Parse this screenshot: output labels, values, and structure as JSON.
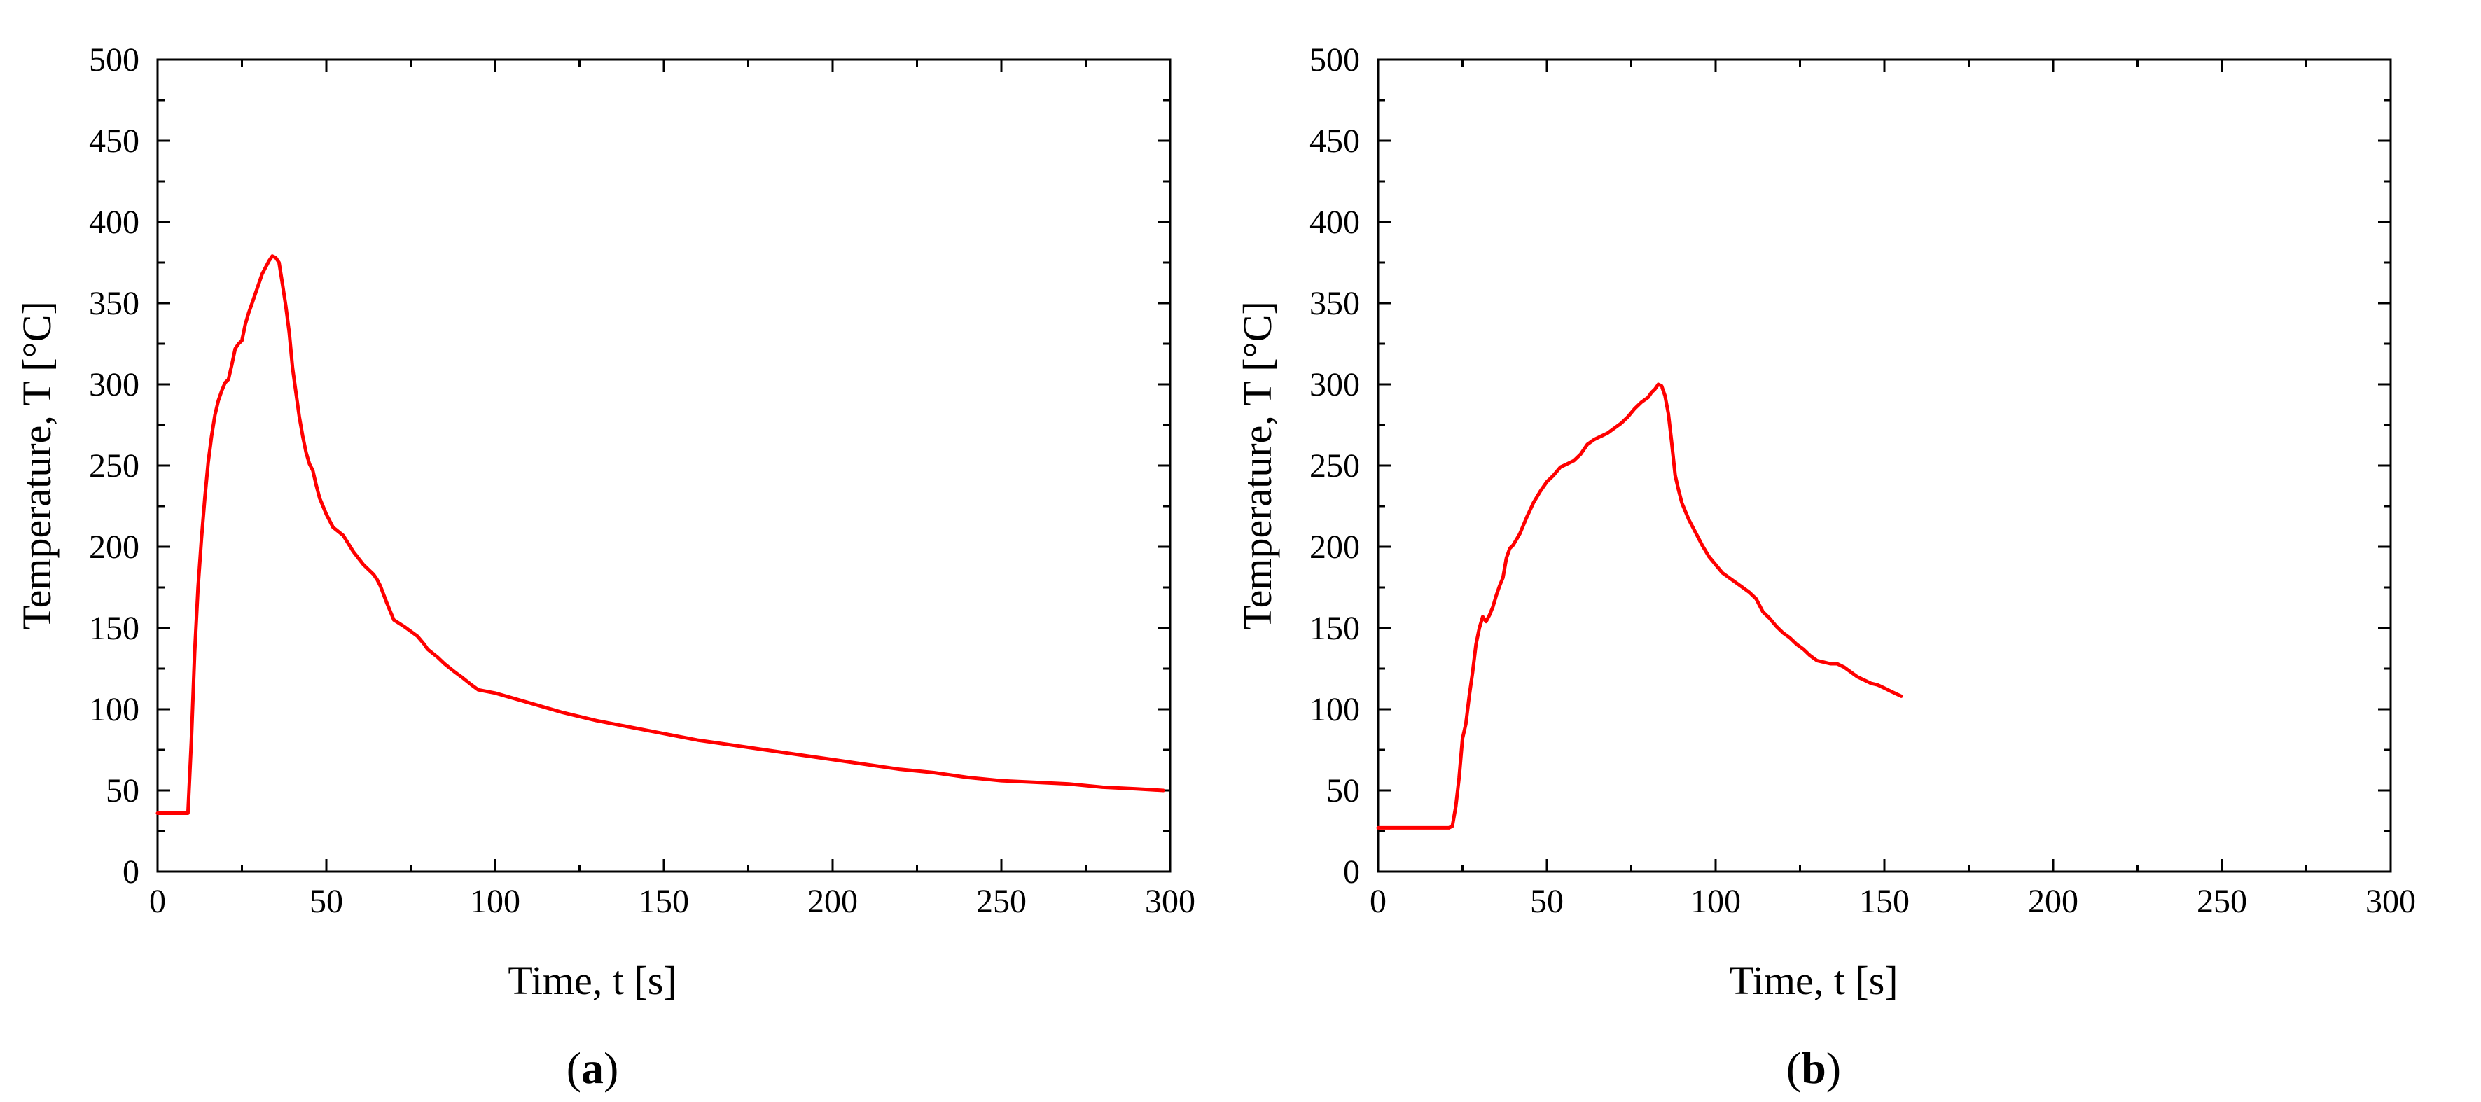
{
  "panels": [
    {
      "id": "a",
      "paren_open": "(",
      "letter": "a",
      "paren_close": ")"
    },
    {
      "id": "b",
      "paren_open": "(",
      "letter": "b",
      "paren_close": ")"
    }
  ],
  "chart_data": [
    {
      "type": "line",
      "title": "",
      "xlabel": "Time, t [s]",
      "ylabel": "Temperature, T [°C]",
      "xlim": [
        0,
        300
      ],
      "ylim": [
        0,
        500
      ],
      "xticks": [
        0,
        50,
        100,
        150,
        200,
        250,
        300
      ],
      "yticks": [
        0,
        50,
        100,
        150,
        200,
        250,
        300,
        350,
        400,
        450,
        500
      ],
      "grid": false,
      "legend": "none",
      "series": [
        {
          "color": "#ff0000",
          "x": [
            0,
            9,
            10,
            11,
            12,
            13,
            14,
            15,
            16,
            17,
            18,
            19,
            20,
            21,
            22,
            23,
            24,
            25,
            26,
            27,
            28,
            29,
            30,
            31,
            32,
            33,
            34,
            35,
            36,
            37,
            38,
            39,
            40,
            41,
            42,
            43,
            44,
            45,
            46,
            47,
            48,
            49,
            50,
            52,
            55,
            58,
            61,
            64,
            65,
            66,
            68,
            70,
            73,
            75,
            77,
            79,
            80,
            83,
            85,
            88,
            90,
            93,
            95,
            100,
            110,
            120,
            130,
            140,
            150,
            160,
            170,
            180,
            190,
            200,
            210,
            220,
            230,
            240,
            250,
            260,
            270,
            280,
            290,
            298
          ],
          "y": [
            36,
            36,
            80,
            135,
            175,
            205,
            230,
            252,
            268,
            281,
            290,
            296,
            301,
            303,
            312,
            322,
            325,
            327,
            337,
            344,
            350,
            356,
            362,
            368,
            372,
            376,
            379,
            378,
            375,
            362,
            348,
            332,
            310,
            295,
            280,
            268,
            258,
            251,
            247,
            238,
            230,
            225,
            220,
            212,
            207,
            197,
            189,
            183,
            180,
            176,
            165,
            155,
            151,
            148,
            145,
            140,
            137,
            132,
            128,
            123,
            120,
            115,
            112,
            110,
            104,
            98,
            93,
            89,
            85,
            81,
            78,
            75,
            72,
            69,
            66,
            63,
            61,
            58,
            56,
            55,
            54,
            52,
            51,
            50
          ]
        }
      ]
    },
    {
      "type": "line",
      "title": "",
      "xlabel": "Time, t [s]",
      "ylabel": "Temperature, T [°C]",
      "xlim": [
        0,
        300
      ],
      "ylim": [
        0,
        500
      ],
      "xticks": [
        0,
        50,
        100,
        150,
        200,
        250,
        300
      ],
      "yticks": [
        0,
        50,
        100,
        150,
        200,
        250,
        300,
        350,
        400,
        450,
        500
      ],
      "grid": false,
      "legend": "none",
      "series": [
        {
          "color": "#ff0000",
          "x": [
            0,
            21,
            22,
            23,
            24,
            25,
            26,
            27,
            28,
            29,
            30,
            31,
            32,
            33,
            34,
            35,
            36,
            37,
            38,
            39,
            40,
            42,
            44,
            46,
            48,
            50,
            52,
            54,
            56,
            58,
            60,
            62,
            64,
            66,
            68,
            70,
            72,
            74,
            76,
            78,
            80,
            81,
            82,
            83,
            84,
            85,
            86,
            87,
            88,
            89,
            90,
            92,
            94,
            96,
            98,
            100,
            102,
            104,
            106,
            108,
            110,
            112,
            114,
            116,
            118,
            120,
            122,
            124,
            126,
            128,
            130,
            132,
            134,
            136,
            138,
            140,
            142,
            144,
            146,
            148,
            150,
            152,
            155
          ],
          "y": [
            27,
            27,
            28,
            40,
            58,
            82,
            91,
            108,
            123,
            140,
            150,
            157,
            154,
            158,
            163,
            170,
            176,
            181,
            193,
            199,
            201,
            208,
            218,
            227,
            234,
            240,
            244,
            249,
            251,
            253,
            257,
            263,
            266,
            268,
            270,
            273,
            276,
            280,
            285,
            289,
            292,
            295,
            297,
            300,
            299,
            293,
            282,
            264,
            244,
            235,
            227,
            217,
            209,
            201,
            194,
            189,
            184,
            181,
            178,
            175,
            172,
            168,
            160,
            156,
            151,
            147,
            144,
            140,
            137,
            133,
            130,
            129,
            128,
            128,
            126,
            123,
            120,
            118,
            116,
            115,
            113,
            111,
            108
          ]
        }
      ]
    }
  ]
}
